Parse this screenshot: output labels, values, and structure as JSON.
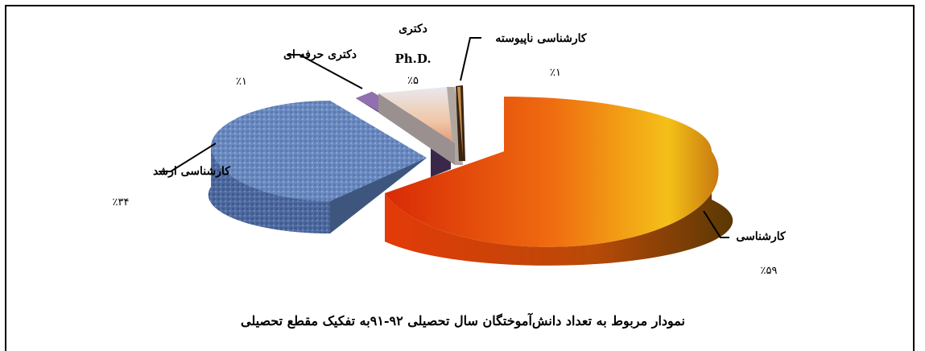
{
  "chart_data": {
    "type": "pie",
    "title": "نمودار مربوط به تعداد دانش‌آموختگان سال تحصیلی ۹۲-۹۱به تفکیک مقطع تحصیلی",
    "slices": [
      {
        "label": "کارشناسی",
        "value": 59,
        "pct_text": "٪۵۹",
        "color": "#e84a10"
      },
      {
        "label": "کارشناسی ارشد",
        "value": 34,
        "pct_text": "٪۳۴",
        "color": "#6f8fc4"
      },
      {
        "label": "دکتری حرفه ای",
        "value": 1,
        "pct_text": "٪۱",
        "color": "#3a2a4a"
      },
      {
        "label": "دکتری",
        "label2": "Ph.D.",
        "value": 5,
        "pct_text": "٪۵",
        "color": "#e8d8c8"
      },
      {
        "label": "کارشناسی ناپیوسته",
        "value": 1,
        "pct_text": "٪۱",
        "color": "#5a3a1a"
      }
    ],
    "legend": "none",
    "style": "3d-exploded"
  }
}
